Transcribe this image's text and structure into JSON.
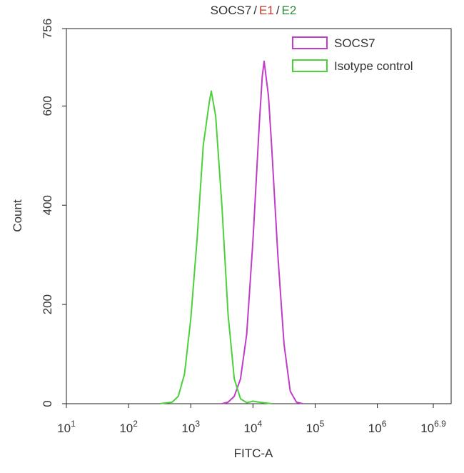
{
  "chart_data": {
    "type": "line",
    "title_parts": [
      {
        "text": "SOCS7",
        "color": "#333333"
      },
      {
        "text": "/",
        "color": "#333333"
      },
      {
        "text": "E1",
        "color": "#c0392b"
      },
      {
        "text": "/",
        "color": "#333333"
      },
      {
        "text": "E2",
        "color": "#2e8b3a"
      }
    ],
    "x_label": "FITC-A",
    "y_label": "Count",
    "x_scale": "log",
    "xlim": [
      10,
      7943282
    ],
    "xticks": [
      {
        "value": 10,
        "label": "10",
        "exponent": "1"
      },
      {
        "value": 100,
        "label": "10",
        "exponent": "2"
      },
      {
        "value": 1000,
        "label": "10",
        "exponent": "3"
      },
      {
        "value": 10000,
        "label": "10",
        "exponent": "4"
      },
      {
        "value": 100000,
        "label": "10",
        "exponent": "5"
      },
      {
        "value": 1000000,
        "label": "10",
        "exponent": "6"
      },
      {
        "value": 7943282,
        "label": "10",
        "exponent": "6.9"
      }
    ],
    "ylim": [
      0,
      756
    ],
    "yticks": [
      0,
      200,
      400,
      600,
      756
    ],
    "legend": "upper right",
    "series": [
      {
        "name": "SOCS7",
        "color": "#c13cc9",
        "x": [
          3162,
          3981,
          5012,
          6310,
          7943,
          10000,
          12589,
          14125,
          15136,
          17783,
          19953,
          25119,
          31623,
          39811,
          50119,
          63096
        ],
        "values": [
          0,
          3,
          15,
          50,
          140,
          330,
          560,
          660,
          690,
          620,
          520,
          300,
          120,
          25,
          3,
          0
        ]
      },
      {
        "name": "Isotype control",
        "color": "#4cd13c",
        "x": [
          316,
          501,
          631,
          794,
          1000,
          1259,
          1585,
          1995,
          2138,
          2512,
          3162,
          3981,
          5012,
          6310,
          7943,
          10000,
          12589,
          19953
        ],
        "values": [
          0,
          3,
          15,
          60,
          170,
          330,
          520,
          610,
          630,
          580,
          400,
          180,
          50,
          10,
          2,
          5,
          3,
          0
        ]
      }
    ]
  }
}
